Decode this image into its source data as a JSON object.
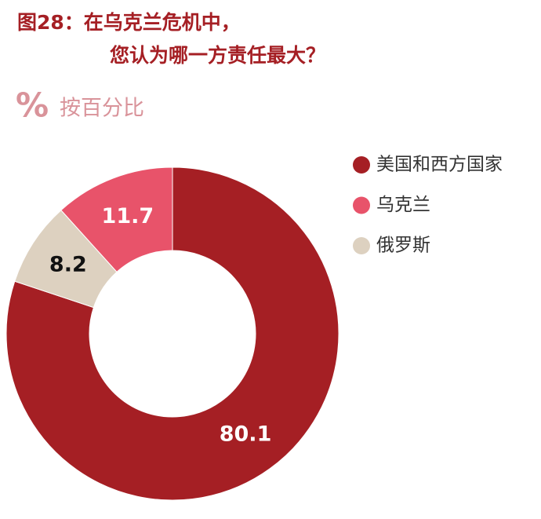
{
  "chart_data": {
    "type": "donut",
    "title": [
      "图28：在乌克兰危机中，",
      "您认为哪一方责任最大？"
    ],
    "subtitle_icon": "%",
    "subtitle": "按百分比",
    "categories": [
      "美国和西方国家",
      "乌克兰",
      "俄罗斯"
    ],
    "values": [
      80.1,
      11.7,
      8.2
    ],
    "colors": [
      "#a51f24",
      "#e8536a",
      "#ddd1c0"
    ],
    "label_colors": [
      "#ffffff",
      "#ffffff",
      "#111111"
    ],
    "legend": "right"
  }
}
